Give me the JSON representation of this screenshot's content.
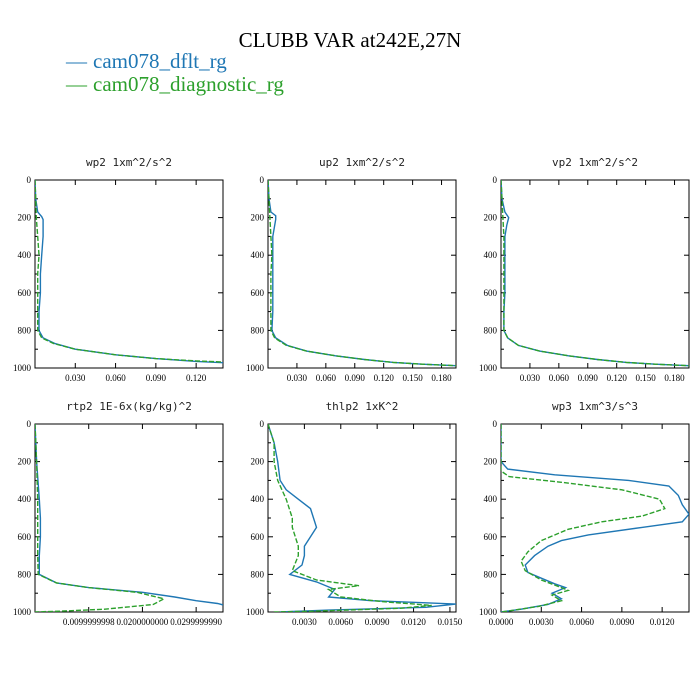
{
  "title": "CLUBB VAR at242E,27N",
  "legend": [
    {
      "label": "cam078_dflt_rg",
      "color": "#1f77b4",
      "dash": "solid"
    },
    {
      "label": "cam078_diagnostic_rg",
      "color": "#2ca02c",
      "dash": "dashed"
    }
  ],
  "chart_data": [
    {
      "type": "line",
      "title": "wp2  1xm^2/s^2",
      "xlim": [
        0,
        0.14
      ],
      "ylim": [
        0,
        1000
      ],
      "xticks": [
        0.03,
        0.06,
        0.09,
        0.12
      ],
      "xticklabels": [
        "0.030",
        "0.060",
        "0.090",
        "0.120"
      ],
      "yticks": [
        0,
        200,
        400,
        600,
        800,
        1000
      ],
      "series": [
        {
          "name": "cam078_dflt_rg",
          "points": [
            [
              0,
              0
            ],
            [
              0.0005,
              100
            ],
            [
              0.002,
              170
            ],
            [
              0.005,
              195
            ],
            [
              0.006,
              210
            ],
            [
              0.006,
              300
            ],
            [
              0.005,
              400
            ],
            [
              0.004,
              500
            ],
            [
              0.004,
              600
            ],
            [
              0.003,
              700
            ],
            [
              0.003,
              800
            ],
            [
              0.006,
              840
            ],
            [
              0.015,
              870
            ],
            [
              0.03,
              900
            ],
            [
              0.06,
              930
            ],
            [
              0.09,
              950
            ],
            [
              0.12,
              965
            ],
            [
              0.14,
              972
            ]
          ]
        },
        {
          "name": "cam078_diagnostic_rg",
          "points": [
            [
              0,
              0
            ],
            [
              0.0005,
              100
            ],
            [
              0.001,
              200
            ],
            [
              0.002,
              300
            ],
            [
              0.003,
              400
            ],
            [
              0.002,
              500
            ],
            [
              0.002,
              600
            ],
            [
              0.002,
              700
            ],
            [
              0.002,
              800
            ],
            [
              0.005,
              840
            ],
            [
              0.014,
              870
            ],
            [
              0.03,
              900
            ],
            [
              0.06,
              930
            ],
            [
              0.09,
              950
            ],
            [
              0.12,
              962
            ],
            [
              0.14,
              968
            ]
          ]
        }
      ]
    },
    {
      "type": "line",
      "title": "up2  1xm^2/s^2",
      "xlim": [
        0,
        0.195
      ],
      "ylim": [
        0,
        1000
      ],
      "xticks": [
        0.03,
        0.06,
        0.09,
        0.12,
        0.15,
        0.18
      ],
      "xticklabels": [
        "0.030",
        "0.060",
        "0.090",
        "0.120",
        "0.150",
        "0.180"
      ],
      "yticks": [
        0,
        200,
        400,
        600,
        800,
        1000
      ],
      "series": [
        {
          "name": "cam078_dflt_rg",
          "points": [
            [
              0,
              0
            ],
            [
              0.001,
              100
            ],
            [
              0.003,
              170
            ],
            [
              0.008,
              190
            ],
            [
              0.008,
              210
            ],
            [
              0.005,
              300
            ],
            [
              0.005,
              400
            ],
            [
              0.005,
              600
            ],
            [
              0.005,
              700
            ],
            [
              0.004,
              800
            ],
            [
              0.008,
              840
            ],
            [
              0.02,
              880
            ],
            [
              0.04,
              910
            ],
            [
              0.07,
              935
            ],
            [
              0.1,
              955
            ],
            [
              0.13,
              970
            ],
            [
              0.16,
              980
            ],
            [
              0.195,
              988
            ]
          ]
        },
        {
          "name": "cam078_diagnostic_rg",
          "points": [
            [
              0,
              0
            ],
            [
              0.001,
              100
            ],
            [
              0.002,
              200
            ],
            [
              0.003,
              300
            ],
            [
              0.004,
              400
            ],
            [
              0.003,
              500
            ],
            [
              0.003,
              600
            ],
            [
              0.003,
              700
            ],
            [
              0.003,
              800
            ],
            [
              0.007,
              840
            ],
            [
              0.019,
              880
            ],
            [
              0.04,
              910
            ],
            [
              0.07,
              935
            ],
            [
              0.1,
              955
            ],
            [
              0.13,
              970
            ],
            [
              0.16,
              980
            ],
            [
              0.195,
              988
            ]
          ]
        }
      ]
    },
    {
      "type": "line",
      "title": "vp2  1xm^2/s^2",
      "xlim": [
        0,
        0.195
      ],
      "ylim": [
        0,
        1000
      ],
      "xticks": [
        0.03,
        0.06,
        0.09,
        0.12,
        0.15,
        0.18
      ],
      "xticklabels": [
        "0.030",
        "0.060",
        "0.090",
        "0.120",
        "0.150",
        "0.180"
      ],
      "yticks": [
        0,
        200,
        400,
        600,
        800,
        1000
      ],
      "series": [
        {
          "name": "cam078_dflt_rg",
          "points": [
            [
              0,
              0
            ],
            [
              0.001,
              100
            ],
            [
              0.004,
              170
            ],
            [
              0.008,
              200
            ],
            [
              0.006,
              240
            ],
            [
              0.004,
              300
            ],
            [
              0.004,
              400
            ],
            [
              0.004,
              600
            ],
            [
              0.003,
              700
            ],
            [
              0.003,
              800
            ],
            [
              0.007,
              840
            ],
            [
              0.018,
              880
            ],
            [
              0.04,
              910
            ],
            [
              0.07,
              935
            ],
            [
              0.1,
              955
            ],
            [
              0.13,
              970
            ],
            [
              0.16,
              980
            ],
            [
              0.195,
              988
            ]
          ]
        },
        {
          "name": "cam078_diagnostic_rg",
          "points": [
            [
              0,
              0
            ],
            [
              0.001,
              100
            ],
            [
              0.002,
              200
            ],
            [
              0.003,
              300
            ],
            [
              0.003,
              400
            ],
            [
              0.003,
              500
            ],
            [
              0.003,
              600
            ],
            [
              0.003,
              700
            ],
            [
              0.003,
              800
            ],
            [
              0.007,
              840
            ],
            [
              0.018,
              880
            ],
            [
              0.04,
              910
            ],
            [
              0.07,
              935
            ],
            [
              0.1,
              955
            ],
            [
              0.13,
              970
            ],
            [
              0.16,
              980
            ],
            [
              0.195,
              988
            ]
          ]
        }
      ]
    },
    {
      "type": "line",
      "title": "rtp2  1E-6x(kg/kg)^2",
      "xlim": [
        0,
        0.035
      ],
      "ylim": [
        0,
        1000
      ],
      "xticks": [
        0.01,
        0.02,
        0.03
      ],
      "xticklabels": [
        "0.0099999998",
        "0.0200000000",
        "0.0299999990"
      ],
      "yticks": [
        0,
        200,
        400,
        600,
        800,
        1000
      ],
      "series": [
        {
          "name": "cam078_dflt_rg",
          "points": [
            [
              0,
              0
            ],
            [
              0.0003,
              200
            ],
            [
              0.0008,
              400
            ],
            [
              0.001,
              500
            ],
            [
              0.001,
              600
            ],
            [
              0.0008,
              700
            ],
            [
              0.0008,
              800
            ],
            [
              0.004,
              845
            ],
            [
              0.01,
              870
            ],
            [
              0.02,
              895
            ],
            [
              0.026,
              920
            ],
            [
              0.03,
              940
            ],
            [
              0.034,
              955
            ],
            [
              0.035,
              962
            ]
          ]
        },
        {
          "name": "cam078_diagnostic_rg",
          "points": [
            [
              0,
              0
            ],
            [
              0.0003,
              200
            ],
            [
              0.0005,
              400
            ],
            [
              0.0005,
              600
            ],
            [
              0.0005,
              700
            ],
            [
              0.0006,
              800
            ],
            [
              0.004,
              845
            ],
            [
              0.01,
              870
            ],
            [
              0.019,
              895
            ],
            [
              0.024,
              930
            ],
            [
              0.022,
              960
            ],
            [
              0.013,
              985
            ],
            [
              0.005,
              995
            ],
            [
              0,
              1000
            ]
          ]
        }
      ]
    },
    {
      "type": "line",
      "title": "thlp2  1xK^2",
      "xlim": [
        0,
        0.0155
      ],
      "ylim": [
        0,
        1000
      ],
      "xticks": [
        0.003,
        0.006,
        0.009,
        0.012,
        0.015
      ],
      "xticklabels": [
        "0.0030",
        "0.0060",
        "0.0090",
        "0.0120",
        "0.0150"
      ],
      "yticks": [
        0,
        200,
        400,
        600,
        800,
        1000
      ],
      "series": [
        {
          "name": "cam078_dflt_rg",
          "points": [
            [
              0,
              0
            ],
            [
              0.0005,
              100
            ],
            [
              0.0008,
              200
            ],
            [
              0.001,
              300
            ],
            [
              0.0015,
              350
            ],
            [
              0.0025,
              400
            ],
            [
              0.0035,
              450
            ],
            [
              0.004,
              550
            ],
            [
              0.0035,
              600
            ],
            [
              0.003,
              650
            ],
            [
              0.003,
              700
            ],
            [
              0.0028,
              750
            ],
            [
              0.0018,
              800
            ],
            [
              0.004,
              840
            ],
            [
              0.0055,
              880
            ],
            [
              0.005,
              920
            ],
            [
              0.0085,
              940
            ],
            [
              0.0125,
              950
            ],
            [
              0.0155,
              958
            ],
            [
              0.013,
              975
            ],
            [
              0.005,
              990
            ],
            [
              0.001,
              1000
            ]
          ]
        },
        {
          "name": "cam078_diagnostic_rg",
          "points": [
            [
              0,
              0
            ],
            [
              0.0005,
              100
            ],
            [
              0.0005,
              200
            ],
            [
              0.0008,
              300
            ],
            [
              0.0015,
              400
            ],
            [
              0.002,
              500
            ],
            [
              0.002,
              550
            ],
            [
              0.0025,
              650
            ],
            [
              0.0025,
              700
            ],
            [
              0.002,
              780
            ],
            [
              0.004,
              830
            ],
            [
              0.0075,
              860
            ],
            [
              0.005,
              880
            ],
            [
              0.006,
              920
            ],
            [
              0.0095,
              945
            ],
            [
              0.0135,
              965
            ],
            [
              0.011,
              980
            ],
            [
              0.004,
              995
            ],
            [
              0.0005,
              1000
            ]
          ]
        }
      ]
    },
    {
      "type": "line",
      "title": "wp3  1xm^3/s^3",
      "xlim": [
        0,
        0.014
      ],
      "ylim": [
        0,
        1000
      ],
      "xticks": [
        0,
        0.003,
        0.006,
        0.009,
        0.012
      ],
      "xticklabels": [
        "0.0000",
        "0.0030",
        "0.0060",
        "0.0090",
        "0.0120"
      ],
      "yticks": [
        0,
        200,
        400,
        600,
        800,
        1000
      ],
      "series": [
        {
          "name": "cam078_dflt_rg",
          "points": [
            [
              0,
              0
            ],
            [
              0,
              200
            ],
            [
              0.0005,
              240
            ],
            [
              0.004,
              270
            ],
            [
              0.0095,
              300
            ],
            [
              0.0125,
              330
            ],
            [
              0.0132,
              380
            ],
            [
              0.0135,
              430
            ],
            [
              0.014,
              480
            ],
            [
              0.0135,
              520
            ],
            [
              0.0105,
              550
            ],
            [
              0.0065,
              590
            ],
            [
              0.0045,
              620
            ],
            [
              0.0035,
              650
            ],
            [
              0.0025,
              700
            ],
            [
              0.0018,
              750
            ],
            [
              0.002,
              790
            ],
            [
              0.003,
              820
            ],
            [
              0.004,
              850
            ],
            [
              0.0048,
              870
            ],
            [
              0.0038,
              900
            ],
            [
              0.0045,
              930
            ],
            [
              0.0035,
              960
            ],
            [
              0.0015,
              985
            ],
            [
              0,
              1000
            ]
          ]
        },
        {
          "name": "cam078_diagnostic_rg",
          "points": [
            [
              0,
              0
            ],
            [
              0,
              250
            ],
            [
              0.0006,
              280
            ],
            [
              0.0045,
              310
            ],
            [
              0.009,
              350
            ],
            [
              0.0118,
              400
            ],
            [
              0.0122,
              450
            ],
            [
              0.0105,
              490
            ],
            [
              0.0075,
              520
            ],
            [
              0.005,
              560
            ],
            [
              0.003,
              620
            ],
            [
              0.002,
              680
            ],
            [
              0.0015,
              730
            ],
            [
              0.0018,
              780
            ],
            [
              0.003,
              830
            ],
            [
              0.0045,
              870
            ],
            [
              0.005,
              885
            ],
            [
              0.0038,
              910
            ],
            [
              0.0045,
              940
            ],
            [
              0.0028,
              970
            ],
            [
              0.001,
              990
            ],
            [
              0,
              1000
            ]
          ]
        }
      ]
    }
  ]
}
